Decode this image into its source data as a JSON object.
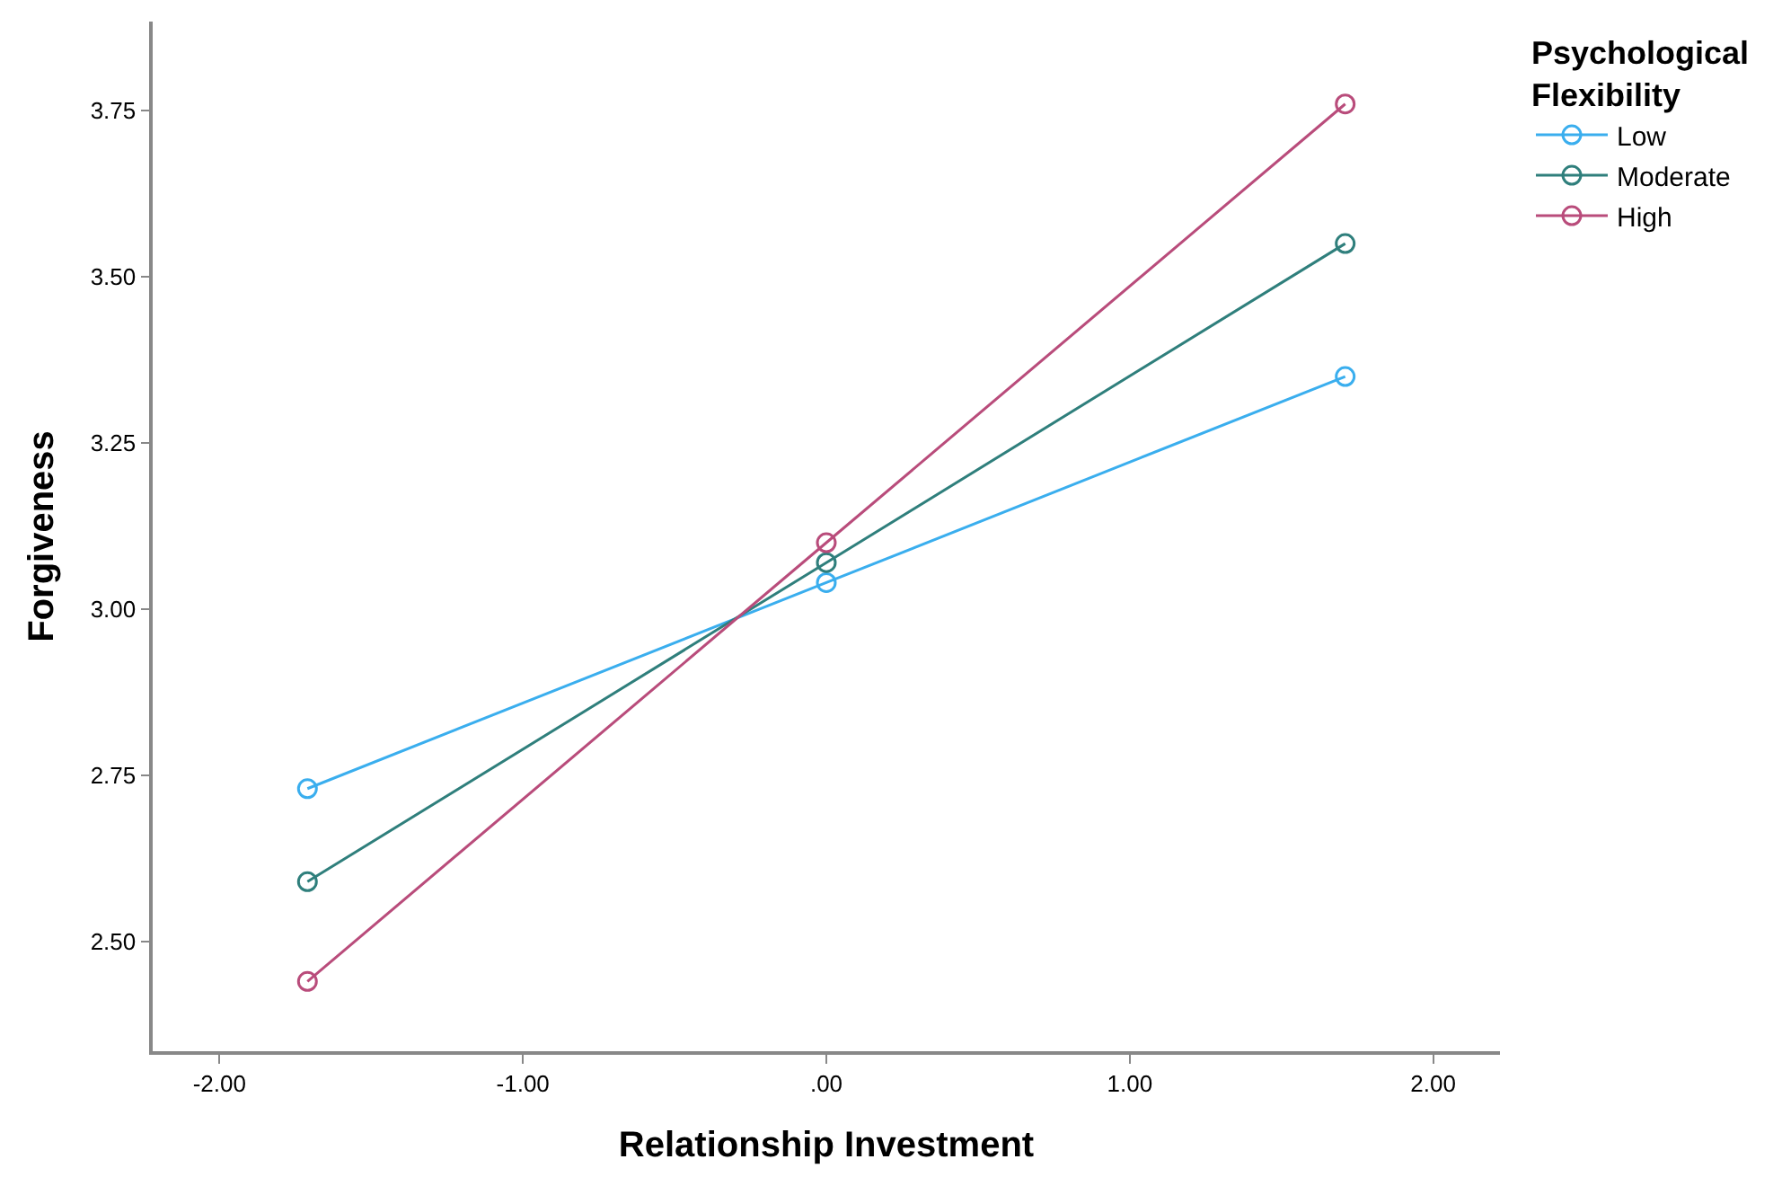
{
  "chart_data": {
    "type": "line",
    "xlabel": "Relationship Investment",
    "ylabel": "Forgiveness",
    "legend_title": "Psychological Flexibility",
    "x": [
      -1.71,
      0,
      1.71
    ],
    "series": [
      {
        "name": "Low",
        "color": "#3aaeee",
        "values": [
          2.73,
          3.04,
          3.35
        ]
      },
      {
        "name": "Moderate",
        "color": "#2f7f7c",
        "values": [
          2.59,
          3.07,
          3.55
        ]
      },
      {
        "name": "High",
        "color": "#b94c7b",
        "values": [
          2.44,
          3.1,
          3.76
        ]
      }
    ],
    "xlim": [
      -2.22,
      2.22
    ],
    "xticks": [
      {
        "value": -2,
        "label": "-2.00"
      },
      {
        "value": -1,
        "label": "-1.00"
      },
      {
        "value": 0,
        "label": ".00"
      },
      {
        "value": 1,
        "label": "1.00"
      },
      {
        "value": 2,
        "label": "2.00"
      }
    ],
    "ylim": [
      2.335,
      3.884
    ],
    "yticks": [
      {
        "value": 2.5,
        "label": "2.50"
      },
      {
        "value": 2.75,
        "label": "2.75"
      },
      {
        "value": 3,
        "label": "3.00"
      },
      {
        "value": 3.25,
        "label": "3.25"
      },
      {
        "value": 3.5,
        "label": "3.50"
      },
      {
        "value": 3.75,
        "label": "3.75"
      }
    ],
    "grid": false,
    "legend": "top right",
    "marker": "circle",
    "line_style": "solid"
  }
}
